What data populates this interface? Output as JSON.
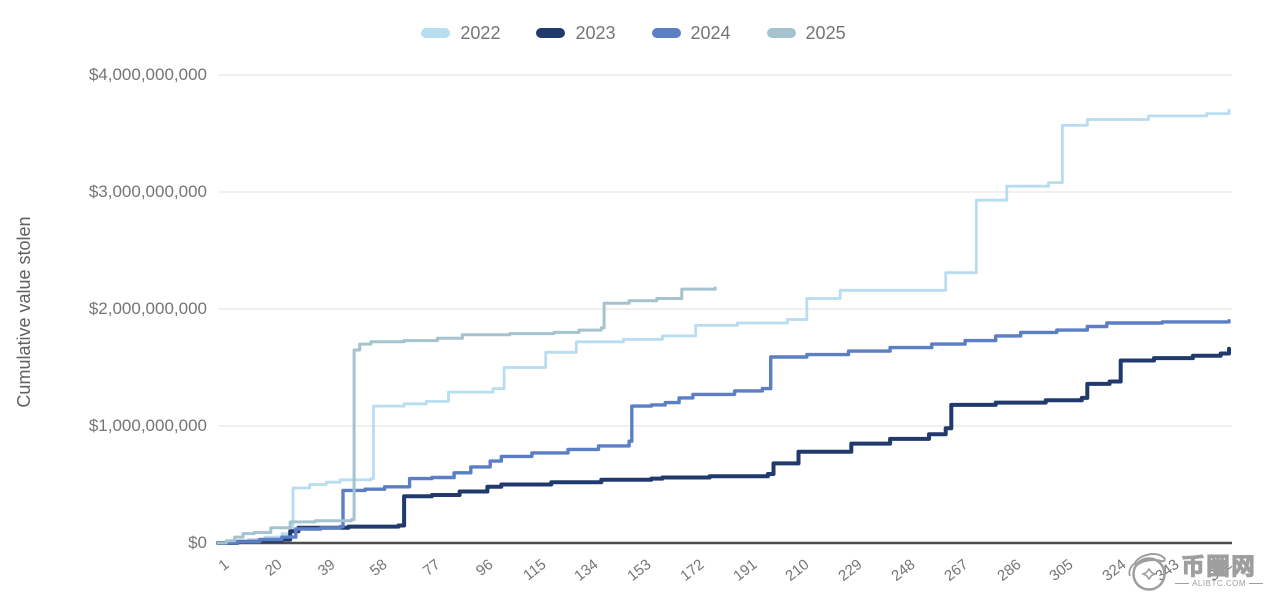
{
  "watermark": {
    "site_name": "币圈网",
    "domain": "ALIBTC.COM",
    "logo": "panda-in-circle-icon"
  },
  "chart_data": {
    "type": "line",
    "stepped": true,
    "title": "",
    "xlabel": "",
    "ylabel": "Cumulative value stolen",
    "x_unit": "day of year",
    "xlim": [
      1,
      365
    ],
    "ylim_usd": [
      0,
      4000000000
    ],
    "grid": "horizontal",
    "legend_position": "top-center",
    "colors": {
      "grid": "#e6e6e6",
      "baseline": "#4d4d4d",
      "tick_label": "#757575",
      "axis_title": "#616161",
      "watermark": "#9e9e9e"
    },
    "y_ticks": [
      {
        "value_billions": 0,
        "label": "$0"
      },
      {
        "value_billions": 1,
        "label": "$1,000,000,000"
      },
      {
        "value_billions": 2,
        "label": "$2,000,000,000"
      },
      {
        "value_billions": 3,
        "label": "$3,000,000,000"
      },
      {
        "value_billions": 4,
        "label": "$4,000,000,000"
      }
    ],
    "x_ticks": [
      1,
      20,
      39,
      58,
      77,
      96,
      115,
      134,
      153,
      172,
      191,
      210,
      229,
      248,
      267,
      286,
      305,
      324,
      343,
      362
    ],
    "series": [
      {
        "name": "2022",
        "color": "#b8dcf0",
        "points_day_usd_billions": [
          [
            1,
            0
          ],
          [
            6,
            0.01
          ],
          [
            12,
            0.03
          ],
          [
            18,
            0.05
          ],
          [
            24,
            0.08
          ],
          [
            27,
            0.1
          ],
          [
            28,
            0.47
          ],
          [
            34,
            0.5
          ],
          [
            40,
            0.52
          ],
          [
            45,
            0.54
          ],
          [
            56,
            0.55
          ],
          [
            57,
            1.17
          ],
          [
            68,
            1.19
          ],
          [
            76,
            1.21
          ],
          [
            84,
            1.29
          ],
          [
            100,
            1.32
          ],
          [
            104,
            1.5
          ],
          [
            119,
            1.63
          ],
          [
            130,
            1.72
          ],
          [
            147,
            1.74
          ],
          [
            161,
            1.77
          ],
          [
            173,
            1.86
          ],
          [
            188,
            1.88
          ],
          [
            206,
            1.91
          ],
          [
            213,
            2.09
          ],
          [
            225,
            2.16
          ],
          [
            263,
            2.31
          ],
          [
            274,
            2.93
          ],
          [
            285,
            3.05
          ],
          [
            300,
            3.08
          ],
          [
            305,
            3.57
          ],
          [
            314,
            3.62
          ],
          [
            336,
            3.65
          ],
          [
            357,
            3.67
          ],
          [
            365,
            3.7
          ]
        ]
      },
      {
        "name": "2023",
        "color": "#203a6d",
        "points_day_usd_billions": [
          [
            1,
            0
          ],
          [
            8,
            0.01
          ],
          [
            16,
            0.02
          ],
          [
            24,
            0.03
          ],
          [
            27,
            0.1
          ],
          [
            30,
            0.13
          ],
          [
            48,
            0.14
          ],
          [
            66,
            0.15
          ],
          [
            68,
            0.4
          ],
          [
            78,
            0.41
          ],
          [
            88,
            0.44
          ],
          [
            98,
            0.48
          ],
          [
            103,
            0.5
          ],
          [
            121,
            0.52
          ],
          [
            139,
            0.54
          ],
          [
            157,
            0.55
          ],
          [
            161,
            0.56
          ],
          [
            178,
            0.57
          ],
          [
            199,
            0.59
          ],
          [
            201,
            0.68
          ],
          [
            210,
            0.78
          ],
          [
            229,
            0.85
          ],
          [
            243,
            0.89
          ],
          [
            257,
            0.93
          ],
          [
            263,
            0.98
          ],
          [
            265,
            1.18
          ],
          [
            281,
            1.2
          ],
          [
            299,
            1.22
          ],
          [
            312,
            1.24
          ],
          [
            314,
            1.36
          ],
          [
            322,
            1.38
          ],
          [
            326,
            1.56
          ],
          [
            338,
            1.58
          ],
          [
            352,
            1.6
          ],
          [
            362,
            1.62
          ],
          [
            365,
            1.66
          ]
        ]
      },
      {
        "name": "2024",
        "color": "#5b7ec5",
        "points_day_usd_billions": [
          [
            1,
            0
          ],
          [
            8,
            0.01
          ],
          [
            16,
            0.03
          ],
          [
            24,
            0.05
          ],
          [
            29,
            0.12
          ],
          [
            38,
            0.13
          ],
          [
            45,
            0.14
          ],
          [
            46,
            0.45
          ],
          [
            54,
            0.46
          ],
          [
            61,
            0.48
          ],
          [
            70,
            0.55
          ],
          [
            78,
            0.56
          ],
          [
            86,
            0.6
          ],
          [
            92,
            0.65
          ],
          [
            99,
            0.7
          ],
          [
            103,
            0.74
          ],
          [
            114,
            0.77
          ],
          [
            127,
            0.8
          ],
          [
            138,
            0.83
          ],
          [
            149,
            0.87
          ],
          [
            150,
            1.17
          ],
          [
            157,
            1.18
          ],
          [
            162,
            1.2
          ],
          [
            167,
            1.24
          ],
          [
            172,
            1.27
          ],
          [
            187,
            1.3
          ],
          [
            197,
            1.32
          ],
          [
            200,
            1.59
          ],
          [
            213,
            1.61
          ],
          [
            228,
            1.64
          ],
          [
            243,
            1.67
          ],
          [
            258,
            1.7
          ],
          [
            270,
            1.73
          ],
          [
            281,
            1.77
          ],
          [
            290,
            1.8
          ],
          [
            303,
            1.82
          ],
          [
            314,
            1.85
          ],
          [
            321,
            1.88
          ],
          [
            341,
            1.89
          ],
          [
            365,
            1.9
          ]
        ]
      },
      {
        "name": "2025",
        "color": "#a4c3ce",
        "points_day_usd_billions": [
          [
            1,
            0
          ],
          [
            4,
            0.02
          ],
          [
            7,
            0.05
          ],
          [
            10,
            0.08
          ],
          [
            14,
            0.09
          ],
          [
            20,
            0.13
          ],
          [
            27,
            0.18
          ],
          [
            36,
            0.19
          ],
          [
            49,
            0.2
          ],
          [
            50,
            1.65
          ],
          [
            52,
            1.7
          ],
          [
            56,
            1.72
          ],
          [
            68,
            1.73
          ],
          [
            80,
            1.75
          ],
          [
            89,
            1.78
          ],
          [
            106,
            1.79
          ],
          [
            122,
            1.8
          ],
          [
            131,
            1.82
          ],
          [
            139,
            1.84
          ],
          [
            140,
            2.05
          ],
          [
            149,
            2.07
          ],
          [
            159,
            2.09
          ],
          [
            168,
            2.17
          ],
          [
            176,
            2.17
          ],
          [
            180,
            2.18
          ]
        ]
      }
    ]
  }
}
